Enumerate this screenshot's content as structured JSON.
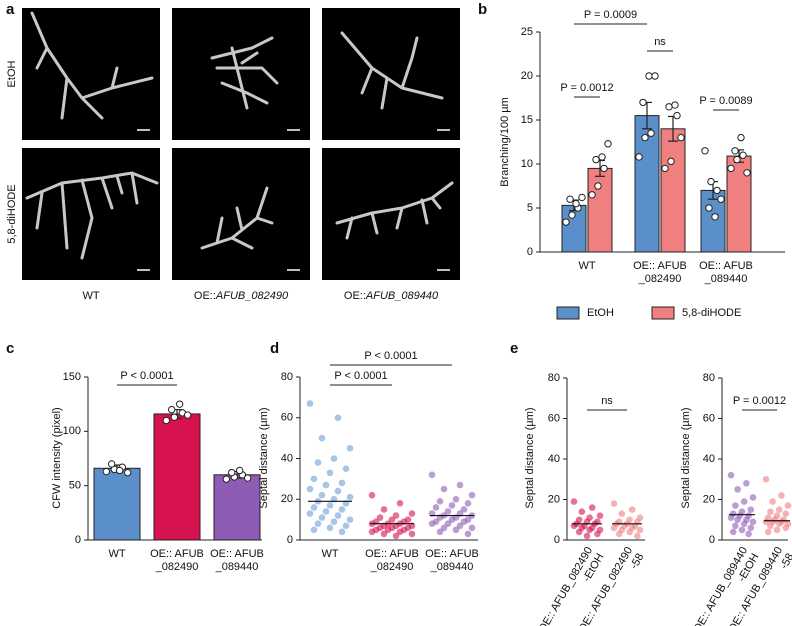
{
  "image_panel": {
    "panel": "a",
    "rows": [
      "EtOH",
      "5,8-diHODE"
    ],
    "columns": [
      "WT",
      "OE::AFUB_082490",
      "OE::AFUB_089440"
    ]
  },
  "chart_data": [
    {
      "type": "bar",
      "panel": "b",
      "ylabel": "Branching/100 µm",
      "categories": [
        "WT",
        "OE:: AFUB_082490",
        "OE:: AFUB_089440"
      ],
      "series": [
        {
          "name": "EtOH",
          "color": "#5b8fc9",
          "values": [
            5.3,
            15.5,
            7.0
          ],
          "errors": [
            0.6,
            1.5,
            1.0
          ],
          "points": [
            [
              3.4,
              4.2,
              5.0,
              6.0,
              5.5,
              6.2
            ],
            [
              10.8,
              13,
              13.5,
              17,
              20,
              20
            ],
            [
              11.5,
              8,
              7,
              5,
              4,
              6
            ]
          ]
        },
        {
          "name": "5,8-diHODE",
          "color": "#f08080",
          "values": [
            9.5,
            14.0,
            10.9
          ],
          "errors": [
            0.9,
            1.4,
            0.7
          ],
          "points": [
            [
              6.5,
              7.5,
              9.5,
              10.5,
              10.8,
              12.3
            ],
            [
              9.5,
              10.3,
              15.5,
              16.5,
              16.7,
              13
            ],
            [
              9.5,
              10.5,
              11,
              11.5,
              13,
              9
            ]
          ]
        }
      ],
      "ylim": [
        0,
        25
      ],
      "yticks": [
        0,
        5,
        10,
        15,
        20,
        25
      ],
      "annotations": [
        "P = 0.0009",
        "P = 0.0012",
        "ns",
        "P = 0.0089"
      ]
    },
    {
      "type": "bar",
      "panel": "c",
      "ylabel": "CFW intensity (pixel)",
      "categories": [
        "WT",
        "OE:: AFUB_082490",
        "OE:: AFUB_089440"
      ],
      "values": [
        66,
        116,
        60
      ],
      "errors": [
        3,
        4,
        3
      ],
      "colors": [
        "#5b8fc9",
        "#d6134f",
        "#8e5bb5"
      ],
      "points": [
        [
          63,
          65,
          67,
          70,
          64,
          62
        ],
        [
          110,
          113,
          117,
          120,
          125,
          115
        ],
        [
          56,
          58,
          60,
          62,
          64,
          57
        ]
      ],
      "ylim": [
        0,
        150
      ],
      "yticks": [
        0,
        50,
        100,
        150
      ],
      "annotations": [
        "P < 0.0001"
      ]
    },
    {
      "type": "strip",
      "panel": "d",
      "ylabel": "Septal distance (µm)",
      "categories": [
        "WT",
        "OE:: AFUB_082490",
        "OE:: AFUB_089440"
      ],
      "colors": [
        "#6d9fd6",
        "#d6134f",
        "#8e5bb5"
      ],
      "points": [
        [
          67,
          60,
          50,
          45,
          40,
          38,
          35,
          33,
          30,
          28,
          27,
          25,
          24,
          22,
          21,
          20,
          19,
          18,
          17,
          16,
          15,
          14,
          13,
          12,
          11,
          10,
          9,
          8,
          7,
          6,
          5,
          4
        ],
        [
          22,
          18,
          15,
          13,
          12,
          11,
          10,
          10,
          9,
          9,
          8,
          8,
          8,
          7,
          7,
          7,
          6,
          6,
          6,
          5,
          5,
          5,
          4,
          4,
          3,
          3,
          2
        ],
        [
          32,
          27,
          25,
          22,
          20,
          19,
          18,
          17,
          16,
          15,
          14,
          13,
          13,
          12,
          12,
          11,
          11,
          10,
          10,
          9,
          9,
          8,
          8,
          7,
          6,
          6,
          5,
          4,
          3
        ]
      ],
      "means": [
        19,
        8,
        12
      ],
      "ylim": [
        0,
        80
      ],
      "yticks": [
        0,
        20,
        40,
        60,
        80
      ],
      "annotations": [
        "P < 0.0001",
        "P < 0.0001"
      ]
    },
    {
      "type": "strip",
      "panel": "e",
      "ylabel": "Septal distance (µm)",
      "categories": [
        "OE:: AFUB_082490-EtOH",
        "OE:: AFUB_082490-58"
      ],
      "colors": [
        "#d6134f",
        "#f07f7f"
      ],
      "points": [
        [
          19,
          16,
          14,
          12,
          11,
          10,
          9,
          9,
          8,
          8,
          7,
          7,
          6,
          6,
          5,
          5,
          4,
          3,
          2
        ],
        [
          18,
          15,
          13,
          11,
          10,
          9,
          9,
          8,
          8,
          7,
          7,
          6,
          6,
          5,
          5,
          4,
          3,
          2
        ]
      ],
      "means": [
        8,
        8
      ],
      "ylim": [
        0,
        80
      ],
      "yticks": [
        0,
        20,
        40,
        60,
        80
      ],
      "annotations": [
        "ns"
      ]
    },
    {
      "type": "strip",
      "ylabel": "Septal distance (µm)",
      "categories": [
        "OE:: AFUB_089440-EtOH",
        "OE:: AFUB_089440-58"
      ],
      "colors": [
        "#8e5bb5",
        "#f07f7f"
      ],
      "points": [
        [
          32,
          28,
          25,
          21,
          19,
          17,
          15,
          14,
          13,
          12,
          12,
          11,
          10,
          10,
          9,
          8,
          7,
          6,
          5,
          4,
          3
        ],
        [
          30,
          22,
          19,
          17,
          15,
          14,
          13,
          12,
          11,
          10,
          10,
          9,
          9,
          9,
          8,
          8,
          7,
          6,
          5,
          4
        ]
      ],
      "means": [
        12.5,
        9.5
      ],
      "ylim": [
        0,
        80
      ],
      "yticks": [
        0,
        20,
        40,
        60,
        80
      ],
      "annotations": [
        "P = 0.0012"
      ]
    }
  ]
}
